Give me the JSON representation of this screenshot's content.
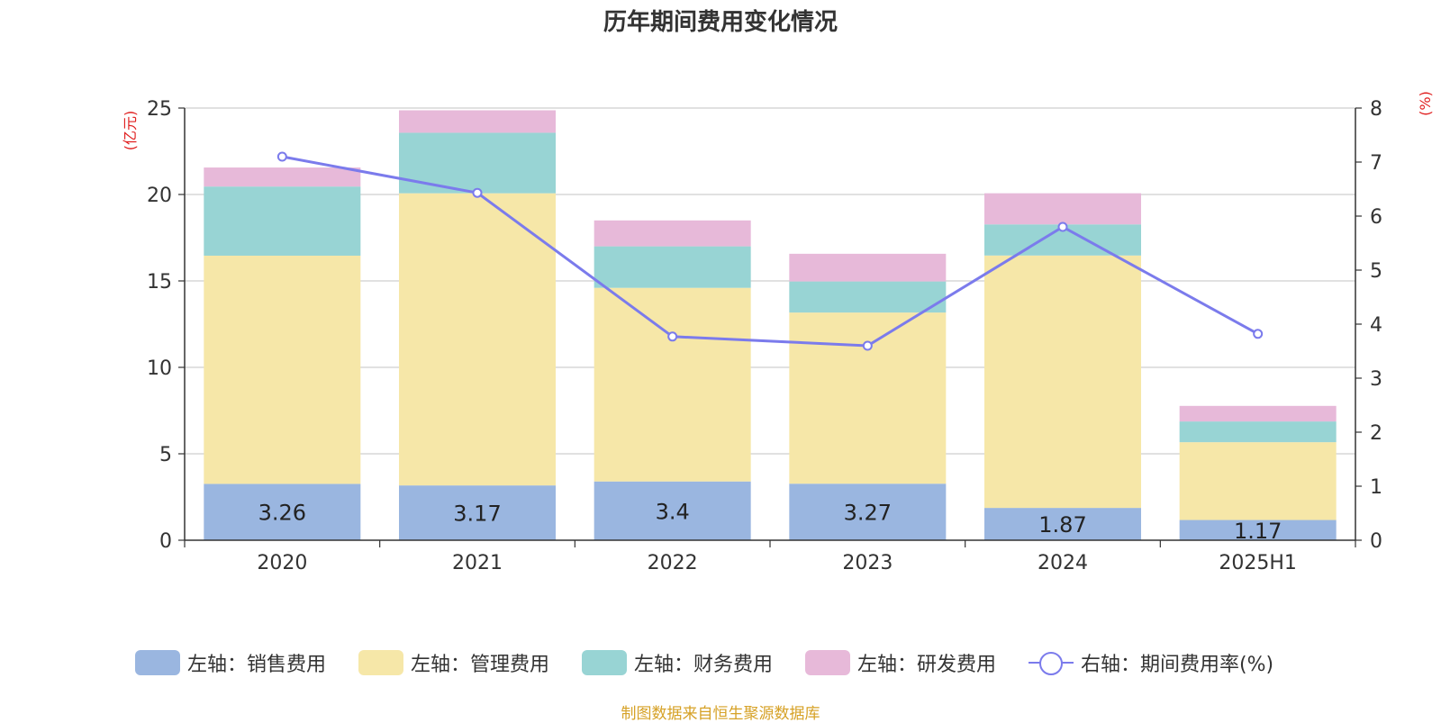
{
  "chart_data": {
    "type": "bar",
    "title": "历年期间费用变化情况",
    "categories": [
      "2020",
      "2021",
      "2022",
      "2023",
      "2024",
      "2025H1"
    ],
    "left_axis": {
      "unit": "(亿元)",
      "ylim": [
        0,
        25
      ],
      "ticks": [
        "0",
        "5",
        "10",
        "15",
        "20",
        "25"
      ]
    },
    "right_axis": {
      "unit": "(%)",
      "ylim": [
        0,
        8
      ],
      "ticks": [
        "0",
        "1",
        "2",
        "3",
        "4",
        "5",
        "6",
        "7",
        "8"
      ]
    },
    "stacked": true,
    "grid": true,
    "legend_position": "bottom",
    "series": [
      {
        "name": "左轴：销售费用",
        "type": "bar",
        "axis": "left",
        "color": "#9ab6e0",
        "values": [
          3.26,
          3.17,
          3.4,
          3.27,
          1.87,
          1.17
        ],
        "labels": [
          "3.26",
          "3.17",
          "3.4",
          "3.27",
          "1.87",
          "1.17"
        ]
      },
      {
        "name": "左轴：管理费用",
        "type": "bar",
        "axis": "left",
        "color": "#f6e7a8",
        "values": [
          13.2,
          16.9,
          11.2,
          9.9,
          14.6,
          4.5
        ]
      },
      {
        "name": "左轴：财务费用",
        "type": "bar",
        "axis": "left",
        "color": "#98d4d4",
        "values": [
          4.0,
          3.5,
          2.4,
          1.8,
          1.8,
          1.2
        ]
      },
      {
        "name": "左轴：研发费用",
        "type": "bar",
        "axis": "left",
        "color": "#e7b9d9",
        "values": [
          1.1,
          1.3,
          1.5,
          1.6,
          1.8,
          0.9
        ]
      },
      {
        "name": "右轴：期间费用率(%)",
        "type": "line",
        "axis": "right",
        "color": "#7b7bec",
        "values": [
          7.1,
          6.43,
          3.77,
          3.6,
          5.8,
          3.82
        ]
      }
    ]
  },
  "footer": {
    "source": "制图数据来自恒生聚源数据库"
  }
}
